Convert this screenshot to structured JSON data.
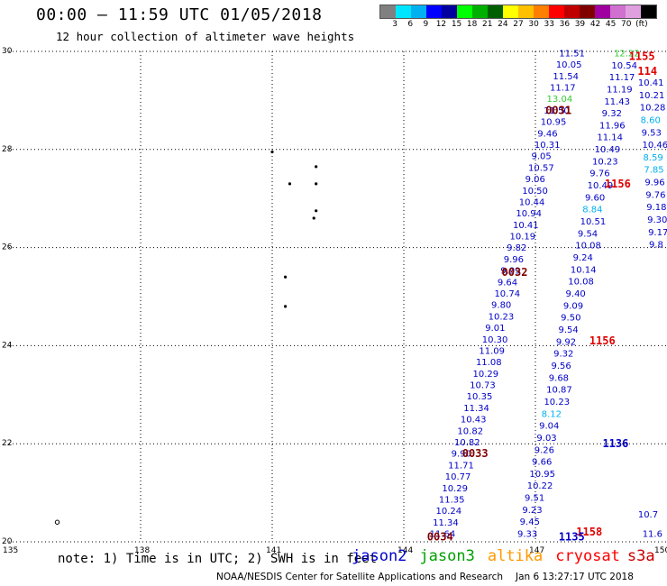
{
  "header": {
    "title": "00:00 – 11:59 UTC 01/05/2018",
    "subtitle": "12 hour collection of altimeter wave heights"
  },
  "legend": {
    "unit": "(ft)",
    "colors": [
      "#808080",
      "#00e5ff",
      "#00b0f0",
      "#0000ff",
      "#0000a0",
      "#00ff00",
      "#00b000",
      "#006000",
      "#ffff00",
      "#ffc000",
      "#ff8000",
      "#ff0000",
      "#c00000",
      "#800000",
      "#a000a0",
      "#d070d0",
      "#e0a0e0",
      "#000000"
    ],
    "labels": [
      "3",
      "6",
      "9",
      "12",
      "15",
      "18",
      "21",
      "24",
      "27",
      "30",
      "33",
      "36",
      "39",
      "42",
      "45",
      "70",
      "(ft)"
    ]
  },
  "map": {
    "x_ticks": [
      "135",
      "138",
      "141",
      "144",
      "147",
      "150"
    ],
    "y_ticks": [
      "30",
      "28",
      "26",
      "24",
      "22",
      "20"
    ],
    "x_range": [
      135,
      150
    ],
    "y_range": [
      20,
      30
    ]
  },
  "tracks": [
    {
      "satellite": "jason2",
      "time_labels": [
        {
          "text": "0031",
          "lon": 147.6,
          "lat": 28.8
        },
        {
          "text": "0032",
          "lon": 146.6,
          "lat": 25.5
        },
        {
          "text": "0033",
          "lon": 145.7,
          "lat": 21.8
        },
        {
          "text": "0034",
          "lon": 144.9,
          "lat": 20.1
        }
      ],
      "values": [
        "11.51",
        "10.05",
        "11.54",
        "11.17",
        "13.04",
        "11.50",
        "10.95",
        "9.46",
        "10.31",
        "9.05",
        "10.57",
        "9.06",
        "10.50",
        "10.44",
        "10.94",
        "10.41",
        "10.19",
        "9.82",
        "9.96",
        "9.99",
        "9.64",
        "10.74",
        "9.80",
        "10.23",
        "9.01",
        "10.30",
        "11.09",
        "11.08",
        "10.29",
        "10.73",
        "10.35",
        "11.34",
        "10.43",
        "10.82",
        "10.82",
        "9.90",
        "11.71",
        "10.77",
        "10.29",
        "11.35",
        "10.24",
        "11.34",
        "11.64"
      ],
      "lat_start": 29.9,
      "lat_end": 20.1,
      "lon_start": 147.95,
      "lon_end": 145.0
    },
    {
      "satellite": "jason2",
      "time_labels": [
        {
          "text": "1155",
          "lon": 149.5,
          "lat": 29.9
        },
        {
          "text": "1156",
          "lon": 148.95,
          "lat": 27.3
        },
        {
          "text": "1156",
          "lon": 148.6,
          "lat": 24.1
        },
        {
          "text": "1158",
          "lon": 148.3,
          "lat": 20.2
        }
      ],
      "values": [
        "12.22",
        "10.54",
        "11.17",
        "11.19",
        "11.43",
        "9.32",
        "11.96",
        "11.14",
        "10.49",
        "10.23",
        "9.76",
        "10.49",
        "9.60",
        "8.84",
        "10.51",
        "9.54",
        "10.08",
        "9.24",
        "10.14",
        "10.08",
        "9.40",
        "9.09",
        "9.50",
        "9.54",
        "9.92",
        "9.32",
        "9.56",
        "9.68",
        "10.87",
        "10.23",
        "8.12",
        "9.04",
        "9.03",
        "9.26",
        "9.66",
        "10.95",
        "10.22",
        "9.51",
        "9.23",
        "9.45",
        "9.33"
      ],
      "lat_start": 29.9,
      "lat_end": 20.1,
      "lon_start": 149.2,
      "lon_end": 147.0
    },
    {
      "satellite": "jason2",
      "time_labels": [
        {
          "text": "114",
          "lon": 149.7,
          "lat": 29.6
        },
        {
          "text": "1136",
          "lon": 148.9,
          "lat": 22.0
        },
        {
          "text": "1135",
          "lon": 147.9,
          "lat": 20.1
        }
      ],
      "values": [
        "10.41",
        "10.21",
        "10.28",
        "8.60",
        "9.53",
        "10.46",
        "8.59",
        "7.85",
        "9.96",
        "9.76",
        "9.18",
        "9.30",
        "9.17",
        "9.8"
      ],
      "lat_start": 29.3,
      "lat_end": 26.0,
      "lon_start": 149.75,
      "lon_end": 150.0
    },
    {
      "satellite": "jason2",
      "time_labels": [],
      "values": [
        "10.7",
        "11.6"
      ],
      "lat_start": 20.5,
      "lat_end": 20.1,
      "lon_start": 149.75,
      "lon_end": 149.85
    }
  ],
  "footer": {
    "note": "note: 1) Time is in UTC; 2) SWH is in feet",
    "satellites": [
      {
        "name": "jason2",
        "color": "#0000cc"
      },
      {
        "name": "jason3",
        "color": "#00a000"
      },
      {
        "name": "altika",
        "color": "#ff9900"
      },
      {
        "name": "cryosat",
        "color": "#ff0000"
      },
      {
        "name": "s3a",
        "color": "#cc0000"
      }
    ],
    "credit": "NOAA/NESDIS Center for Satellite Applications and Research",
    "timestamp": "Jan  6 13:27:17 UTC 2018"
  }
}
